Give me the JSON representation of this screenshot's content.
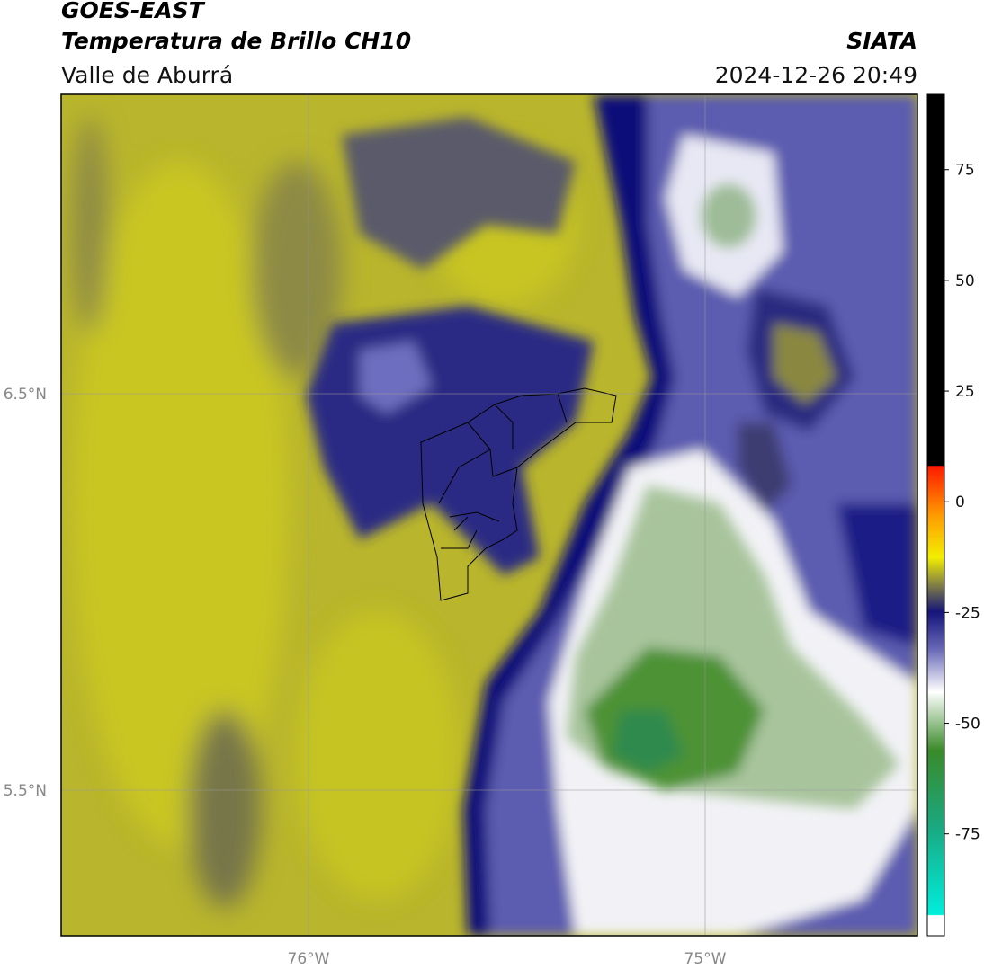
{
  "header": {
    "title": "GOES-EAST",
    "subtitle": "Temperatura de Brillo CH10",
    "region": "Valle de Aburrá",
    "source": "SIATA",
    "datetime": "2024-12-26 20:49"
  },
  "map": {
    "lat_labels": [
      "6.5°N",
      "5.5°N"
    ],
    "lon_labels": [
      "76°W",
      "75°W"
    ]
  },
  "colorbar": {
    "lim": [
      -98,
      92
    ],
    "ticks": [
      75,
      50,
      25,
      0,
      -25,
      -50,
      -75
    ]
  }
}
